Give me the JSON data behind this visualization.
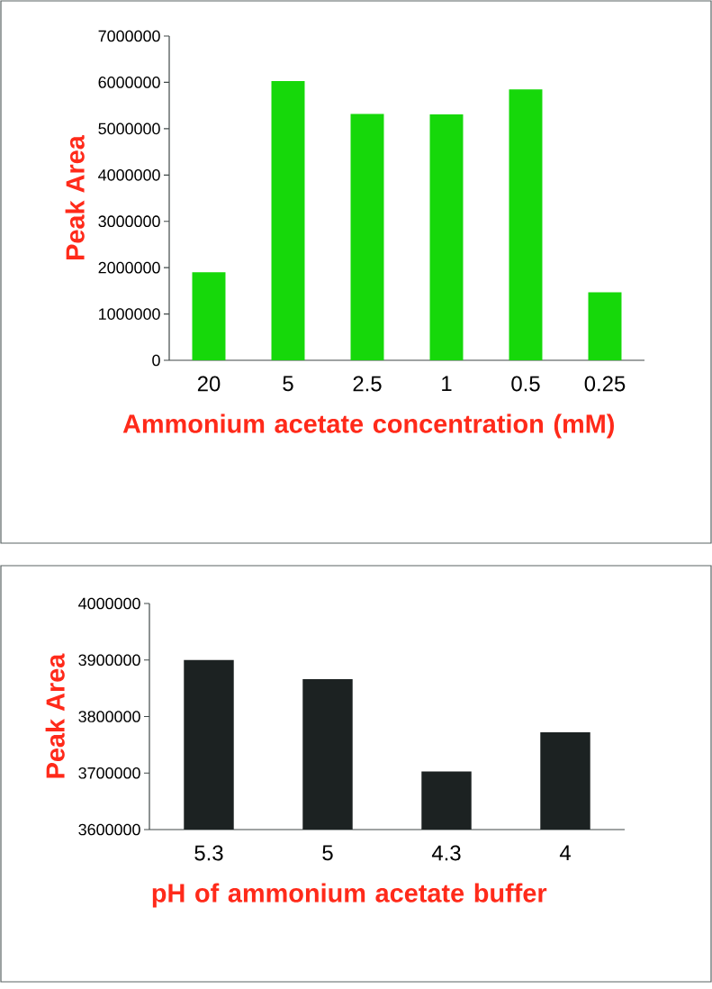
{
  "chart_data": [
    {
      "type": "bar",
      "xlabel": "Ammonium acetate concentration (mM)",
      "ylabel": "Peak Area",
      "categories": [
        "20",
        "5",
        "2.5",
        "1",
        "0.5",
        "0.25"
      ],
      "values": [
        1900000,
        6030000,
        5320000,
        5310000,
        5850000,
        1470000
      ],
      "color": "#16d80a",
      "ylim": [
        0,
        7000000
      ],
      "yticks": [
        0,
        1000000,
        2000000,
        3000000,
        4000000,
        5000000,
        6000000,
        7000000
      ]
    },
    {
      "type": "bar",
      "xlabel": "pH of ammonium acetate buffer",
      "ylabel": "Peak Area",
      "categories": [
        "5.3",
        "5",
        "4.3",
        "4"
      ],
      "values": [
        3900000,
        3866000,
        3703000,
        3772000
      ],
      "color": "#1c2222",
      "ylim": [
        3600000,
        4000000
      ],
      "yticks": [
        3600000,
        3700000,
        3800000,
        3900000,
        4000000
      ]
    }
  ]
}
